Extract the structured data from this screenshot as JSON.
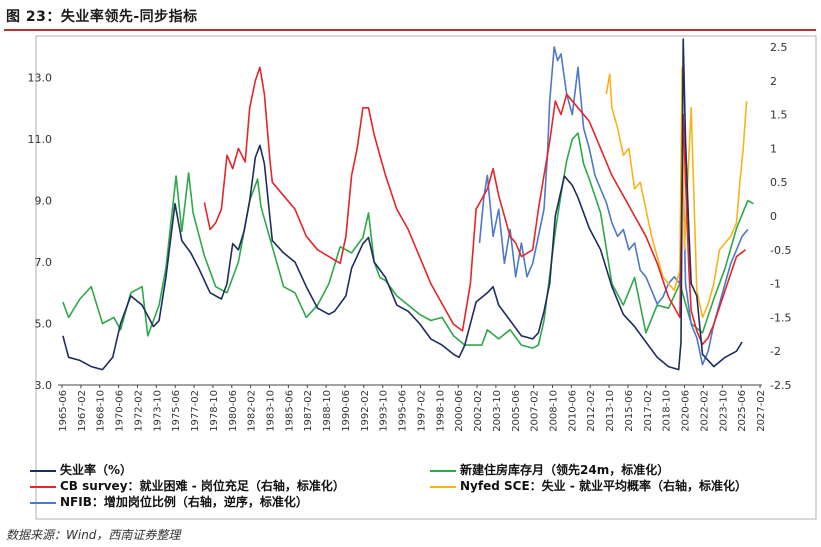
{
  "title": "图 23：失业率领先-同步指标",
  "source": "数据来源：Wind，西南证券整理",
  "chart_data": {
    "type": "line",
    "left_axis": {
      "min": 3.0,
      "max": 14.0,
      "ticks": [
        "3.0",
        "5.0",
        "7.0",
        "9.0",
        "11.0",
        "13.0"
      ]
    },
    "right_axis": {
      "min": -2.5,
      "max": 2.5,
      "ticks": [
        "2.5",
        "2",
        "1.5",
        "1",
        "0.5",
        "0",
        "-0.5",
        "-1",
        "-1.5",
        "-2",
        "-2.5"
      ]
    },
    "x_labels": [
      "1965-06",
      "1967-02",
      "1968-10",
      "1970-06",
      "1972-02",
      "1973-10",
      "1975-06",
      "1977-02",
      "1978-10",
      "1980-06",
      "1982-02",
      "1983-10",
      "1985-06",
      "1987-02",
      "1988-10",
      "1990-06",
      "1992-02",
      "1993-10",
      "1995-06",
      "1997-02",
      "1998-10",
      "2000-06",
      "2002-02",
      "2003-10",
      "2005-06",
      "2007-02",
      "2008-10",
      "2010-06",
      "2012-02",
      "2013-10",
      "2015-06",
      "2017-02",
      "2018-10",
      "2020-06",
      "2022-02",
      "2023-10",
      "2025-06",
      "2027-02"
    ],
    "x_range": [
      1965.42,
      2027.08
    ],
    "series": [
      {
        "name": "失业率（%）",
        "axis": "left",
        "color": "#1f2d5c",
        "x": [
          1965.5,
          1966,
          1967,
          1968,
          1969,
          1969.9,
          1970.6,
          1971.5,
          1972.5,
          1973.5,
          1974,
          1974.6,
          1975.4,
          1976,
          1976.8,
          1977.5,
          1978.5,
          1979.5,
          1980,
          1980.5,
          1981,
          1981.5,
          1982,
          1982.5,
          1982.9,
          1983.3,
          1984,
          1985,
          1986,
          1987,
          1988,
          1989,
          1989.5,
          1990.5,
          1991,
          1992,
          1992.5,
          1993,
          1994,
          1995,
          1996,
          1997,
          1998,
          1999,
          2000,
          2000.5,
          2001,
          2002,
          2003,
          2003.5,
          2004,
          2005,
          2006,
          2007,
          2007.5,
          2008,
          2008.5,
          2009,
          2009.8,
          2010.5,
          2011,
          2012,
          2013,
          2014,
          2015,
          2016,
          2017,
          2018,
          2019,
          2019.9,
          2020.1,
          2020.3,
          2020.5,
          2020.8,
          2021,
          2021.5,
          2022,
          2023,
          2024,
          2025,
          2025.5
        ],
        "values": [
          4.6,
          3.9,
          3.8,
          3.6,
          3.5,
          3.9,
          5.0,
          5.9,
          5.6,
          4.9,
          5.1,
          6.5,
          8.9,
          7.7,
          7.3,
          6.8,
          6.0,
          5.8,
          6.3,
          7.6,
          7.4,
          8.0,
          9.0,
          10.4,
          10.8,
          10.2,
          7.7,
          7.3,
          7.0,
          6.2,
          5.5,
          5.3,
          5.4,
          5.9,
          6.8,
          7.6,
          7.8,
          7.0,
          6.5,
          5.6,
          5.4,
          5.0,
          4.5,
          4.3,
          4.0,
          3.9,
          4.3,
          5.7,
          6.0,
          6.2,
          5.6,
          5.1,
          4.6,
          4.5,
          4.7,
          5.4,
          6.3,
          8.5,
          9.8,
          9.5,
          9.1,
          8.1,
          7.4,
          6.2,
          5.3,
          4.9,
          4.4,
          3.9,
          3.6,
          3.5,
          4.4,
          14.7,
          11.0,
          8.0,
          6.3,
          5.9,
          4.0,
          3.6,
          3.9,
          4.1,
          4.4
        ]
      },
      {
        "name": "新建住房库存月（领先24m，标准化）",
        "axis": "left",
        "color": "#2ea84a",
        "x": [
          1965.5,
          1966,
          1967,
          1968,
          1969,
          1970,
          1970.6,
          1971.5,
          1972.5,
          1973,
          1974,
          1974.6,
          1975.5,
          1976,
          1976.6,
          1977,
          1978,
          1979,
          1980,
          1981,
          1982,
          1982.7,
          1983,
          1984,
          1985,
          1986,
          1987,
          1988,
          1989,
          1990,
          1991,
          1992,
          1992.5,
          1993,
          1993.5,
          1994,
          1995,
          1996,
          1997,
          1998,
          1999,
          2000,
          2001,
          2001.8,
          2002.5,
          2003,
          2004,
          2005,
          2006,
          2007,
          2007.5,
          2008,
          2009,
          2009.5,
          2010,
          2010.5,
          2011,
          2011.5,
          2012,
          2013,
          2014,
          2015,
          2016,
          2017,
          2018,
          2019,
          2020,
          2021,
          2022,
          2023,
          2024,
          2025,
          2026,
          2026.5
        ],
        "values": [
          5.7,
          5.2,
          5.8,
          6.2,
          5.0,
          5.2,
          4.8,
          6.0,
          6.2,
          4.6,
          5.6,
          6.8,
          9.8,
          8.0,
          9.9,
          8.6,
          7.2,
          6.2,
          6.0,
          7.0,
          9.0,
          9.7,
          8.8,
          7.5,
          6.2,
          6.0,
          5.2,
          5.6,
          6.3,
          7.5,
          7.3,
          7.8,
          8.6,
          7.0,
          6.5,
          6.4,
          5.9,
          5.6,
          5.3,
          5.1,
          5.2,
          4.6,
          4.3,
          4.3,
          4.3,
          4.8,
          4.5,
          4.8,
          4.3,
          4.2,
          4.3,
          5.1,
          8.0,
          9.2,
          10.3,
          11.0,
          11.2,
          10.2,
          9.7,
          8.6,
          6.3,
          5.6,
          6.5,
          4.7,
          5.6,
          5.5,
          6.3,
          5.0,
          4.7,
          5.8,
          6.8,
          8.1,
          9.0,
          8.9
        ]
      },
      {
        "name": "CB survey：就业困难 - 岗位充足（右轴，标准化）",
        "axis": "right",
        "color": "#e4262a",
        "x": [
          1978,
          1978.5,
          1979,
          1979.5,
          1980,
          1980.5,
          1981,
          1981.3,
          1981.6,
          1982,
          1982.5,
          1982.9,
          1983.3,
          1983.8,
          1984,
          1985,
          1986,
          1987,
          1988,
          1989,
          1990,
          1990.5,
          1991,
          1991.5,
          1992,
          1992.5,
          1993,
          1994,
          1995,
          1996,
          1997,
          1998,
          1999,
          2000,
          2000.8,
          2001.5,
          2002,
          2003,
          2003.5,
          2004,
          2005,
          2005.5,
          2006,
          2007,
          2007.5,
          2008,
          2008.5,
          2009,
          2009.5,
          2010,
          2011,
          2012,
          2013,
          2014,
          2015,
          2016,
          2017,
          2018,
          2019,
          2020,
          2020.3,
          2020.8,
          2021,
          2021.5,
          2022,
          2022.5,
          2023,
          2024,
          2025,
          2025.8
        ],
        "values": [
          0.2,
          -0.2,
          -0.1,
          0.1,
          0.9,
          0.7,
          1.0,
          0.9,
          0.8,
          1.6,
          2.0,
          2.2,
          1.8,
          0.8,
          0.5,
          0.3,
          0.1,
          -0.3,
          -0.5,
          -0.6,
          -0.7,
          -0.3,
          0.6,
          1.0,
          1.6,
          1.6,
          1.2,
          0.6,
          0.1,
          -0.2,
          -0.6,
          -1.0,
          -1.3,
          -1.6,
          -1.7,
          -1.0,
          0.1,
          0.4,
          0.7,
          0.3,
          -0.3,
          -0.4,
          -0.6,
          -0.5,
          0.1,
          0.6,
          1.1,
          1.7,
          1.5,
          1.8,
          1.6,
          1.4,
          1.0,
          0.6,
          0.3,
          0.0,
          -0.3,
          -0.7,
          -1.2,
          -1.5,
          1.5,
          -0.8,
          -1.4,
          -1.7,
          -1.9,
          -1.8,
          -1.6,
          -1.1,
          -0.6,
          -0.5
        ]
      },
      {
        "name": "Nyfed SCE：失业 - 就业平均概率（右轴，标准化）",
        "axis": "right",
        "color": "#f5b519",
        "x": [
          2013.5,
          2013.8,
          2014,
          2014.5,
          2015,
          2015.5,
          2016,
          2016.5,
          2017,
          2017.5,
          2018,
          2018.5,
          2019,
          2019.5,
          2020,
          2020.2,
          2020.4,
          2021,
          2021.5,
          2022,
          2022.5,
          2023,
          2023.5,
          2024,
          2024.5,
          2025,
          2025.3,
          2025.6,
          2025.9
        ],
        "values": [
          1.8,
          2.1,
          1.6,
          1.3,
          0.9,
          1.0,
          0.4,
          0.5,
          0.1,
          -0.3,
          -0.6,
          -0.9,
          -1.0,
          -1.1,
          -0.8,
          2.2,
          -0.5,
          1.6,
          -1.1,
          -1.5,
          -1.3,
          -1.0,
          -0.5,
          -0.4,
          -0.3,
          -0.1,
          0.5,
          1.0,
          1.7
        ]
      },
      {
        "name": "NFIB：增加岗位比例（右轴，逆序，标准化）",
        "axis": "right",
        "color": "#4f78c8",
        "x": [
          2002.3,
          2002.7,
          2003,
          2003.5,
          2004,
          2004.5,
          2005,
          2005.5,
          2006,
          2006.5,
          2007,
          2007.5,
          2008,
          2008.3,
          2008.5,
          2008.9,
          2009.2,
          2009.5,
          2010,
          2010.5,
          2011,
          2011.5,
          2012,
          2012.5,
          2013,
          2013.5,
          2014,
          2014.5,
          2015,
          2015.5,
          2016,
          2016.5,
          2017,
          2017.5,
          2018,
          2018.5,
          2019,
          2019.5,
          2020,
          2020.2,
          2020.5,
          2021,
          2021.5,
          2022,
          2022.5,
          2023,
          2023.5,
          2024,
          2024.5,
          2025,
          2025.5,
          2026
        ],
        "values": [
          -0.4,
          0.3,
          0.6,
          -0.3,
          0.1,
          -0.7,
          -0.2,
          -0.9,
          -0.4,
          -0.9,
          -0.7,
          -0.3,
          0.1,
          0.9,
          1.7,
          2.5,
          2.3,
          2.4,
          1.8,
          1.5,
          2.2,
          1.3,
          1.0,
          0.6,
          0.4,
          0.2,
          -0.1,
          -0.3,
          -0.2,
          -0.5,
          -0.4,
          -0.8,
          -0.9,
          -1.1,
          -1.3,
          -1.2,
          -1.0,
          -0.9,
          -1.0,
          1.5,
          -1.0,
          -1.6,
          -1.8,
          -2.2,
          -2.0,
          -1.6,
          -1.3,
          -1.0,
          -0.7,
          -0.5,
          -0.3,
          -0.2
        ]
      }
    ]
  }
}
